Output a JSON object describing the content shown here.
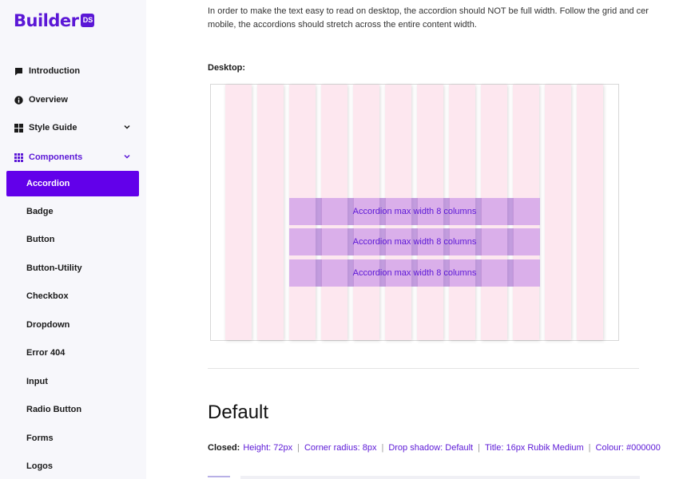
{
  "app": {
    "logo_text": "Builder",
    "logo_badge": "DS"
  },
  "sidebar": {
    "items": [
      {
        "label": "Introduction",
        "icon": "comment-icon"
      },
      {
        "label": "Overview",
        "icon": "info-icon"
      },
      {
        "label": "Style Guide",
        "icon": "grid-icon"
      },
      {
        "label": "Components",
        "icon": "apps-icon"
      }
    ],
    "components": [
      {
        "label": "Accordion"
      },
      {
        "label": "Badge"
      },
      {
        "label": "Button"
      },
      {
        "label": "Button-Utility"
      },
      {
        "label": "Checkbox"
      },
      {
        "label": "Dropdown"
      },
      {
        "label": "Error 404"
      },
      {
        "label": "Input"
      },
      {
        "label": "Radio Button"
      },
      {
        "label": "Forms"
      },
      {
        "label": "Logos"
      }
    ]
  },
  "main": {
    "intro_line1": "In order to make the text easy to read on desktop, the accordion should NOT be full width. Follow the grid and cer",
    "intro_line2": "mobile, the accordions should stretch across the entire content width.",
    "desktop_label": "Desktop:",
    "accordion_bars": [
      "Accordion max width 8 columns",
      "Accordion max width 8 columns",
      "Accordion max width 8 columns"
    ],
    "section_title": "Default",
    "specs_label": "Closed:",
    "specs": [
      "Height: 72px",
      "Corner radius: 8px",
      "Drop shadow: Default",
      "Title: 16px Rubik Medium",
      "Colour: #000000"
    ]
  },
  "colors": {
    "brand": "#5b17d6",
    "active_bg": "#6200ea",
    "grid_column": "#fde7ef"
  }
}
